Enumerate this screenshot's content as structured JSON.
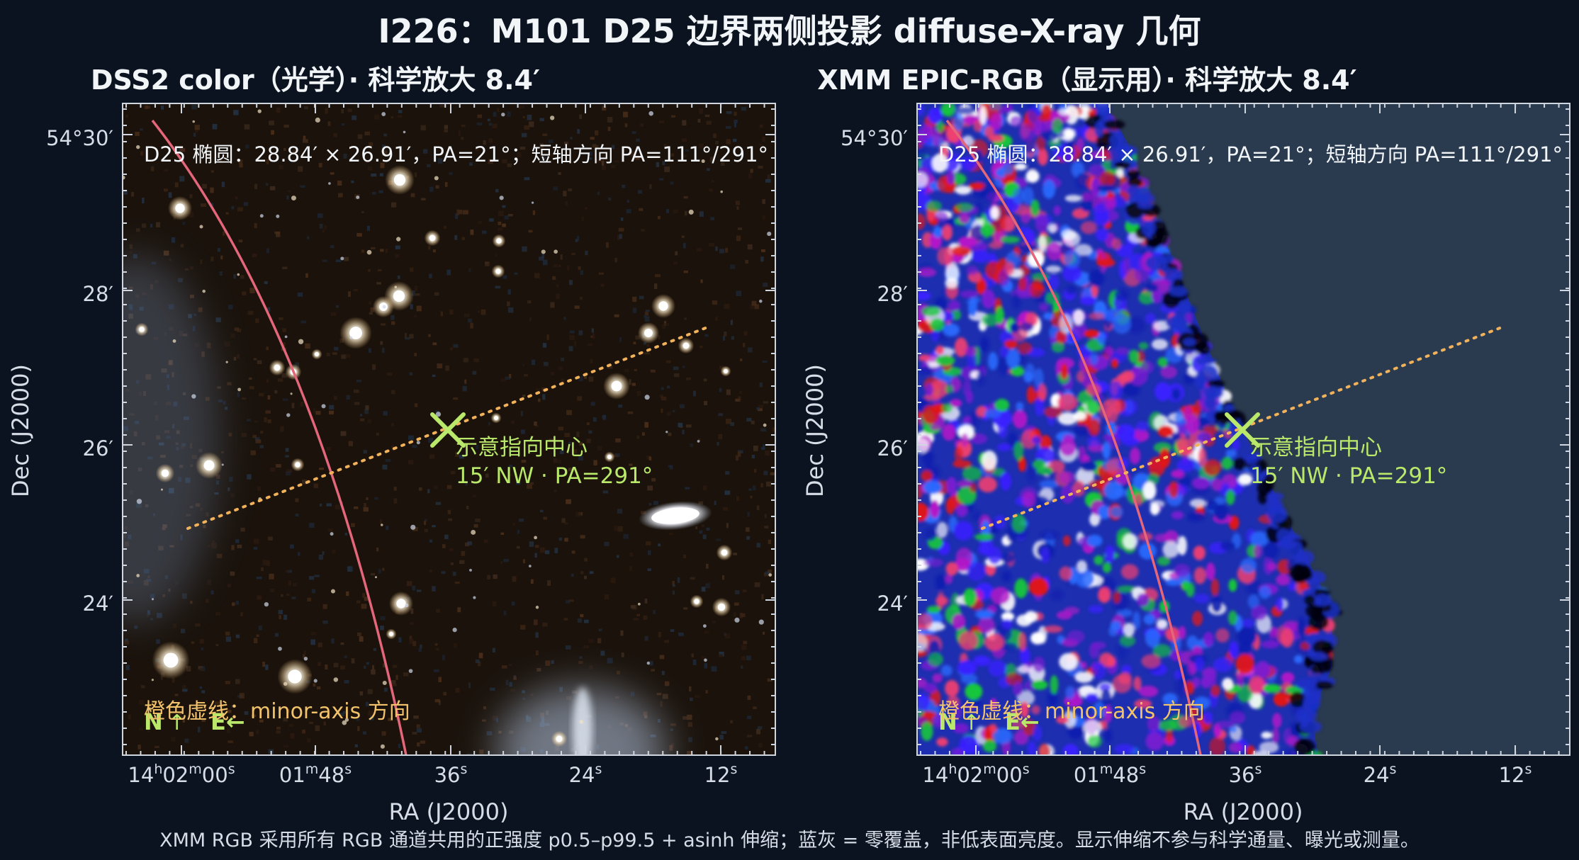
{
  "title": "I226：M101 D25 边界两侧投影 diffuse-X-ray 几何",
  "panels": [
    {
      "id": "optical",
      "title": "DSS2 color（光学）· 科学放大 8.4′",
      "xlabel": "RA (J2000)",
      "ylabel": "Dec (J2000)",
      "background": "#1a130c"
    },
    {
      "id": "xray",
      "title": "XMM EPIC-RGB（显示用）· 科学放大 8.4′",
      "xlabel": "RA (J2000)",
      "ylabel": "Dec (J2000)",
      "background": "#2b3a4e"
    }
  ],
  "axes": {
    "dec_ticks": [
      "54°30′",
      "28′",
      "26′",
      "24′"
    ],
    "ra_ticks": [
      {
        "h": "14",
        "hs": "h",
        "m": "02",
        "ms": "m",
        "s": "00",
        "ss": "s"
      },
      {
        "h": "",
        "hs": "",
        "m": "01",
        "ms": "m",
        "s": "48",
        "ss": "s"
      },
      {
        "h": "",
        "hs": "",
        "m": "",
        "ms": "",
        "s": "36",
        "ss": "s"
      },
      {
        "h": "",
        "hs": "",
        "m": "",
        "ms": "",
        "s": "24",
        "ss": "s"
      },
      {
        "h": "",
        "hs": "",
        "m": "",
        "ms": "",
        "s": "12",
        "ss": "s"
      }
    ]
  },
  "annotations": {
    "d25_text": "D25 椭圆：28.84′ × 26.91′，PA=21°；短轴方向 PA=111°/291°",
    "pointer_line1": "示意指向中心",
    "pointer_line2": "15′ NW · PA=291°",
    "minor_axis_text": "橙色虚线：minor-axis 方向",
    "compass_n": "N",
    "compass_sep": "↑",
    "compass_e": "E←"
  },
  "footer": "XMM RGB 采用所有 RGB 通道共用的正强度 p0.5–p99.5 + asinh 伸缩；蓝灰 = 零覆盖，非低表面亮度。显示伸缩不参与科学通量、曝光或测量。",
  "colors": {
    "d25_ellipse": "#e3667a",
    "minor_axis": "#f2b25a",
    "pointer": "#b9e86a",
    "text": "#e8edf3"
  }
}
